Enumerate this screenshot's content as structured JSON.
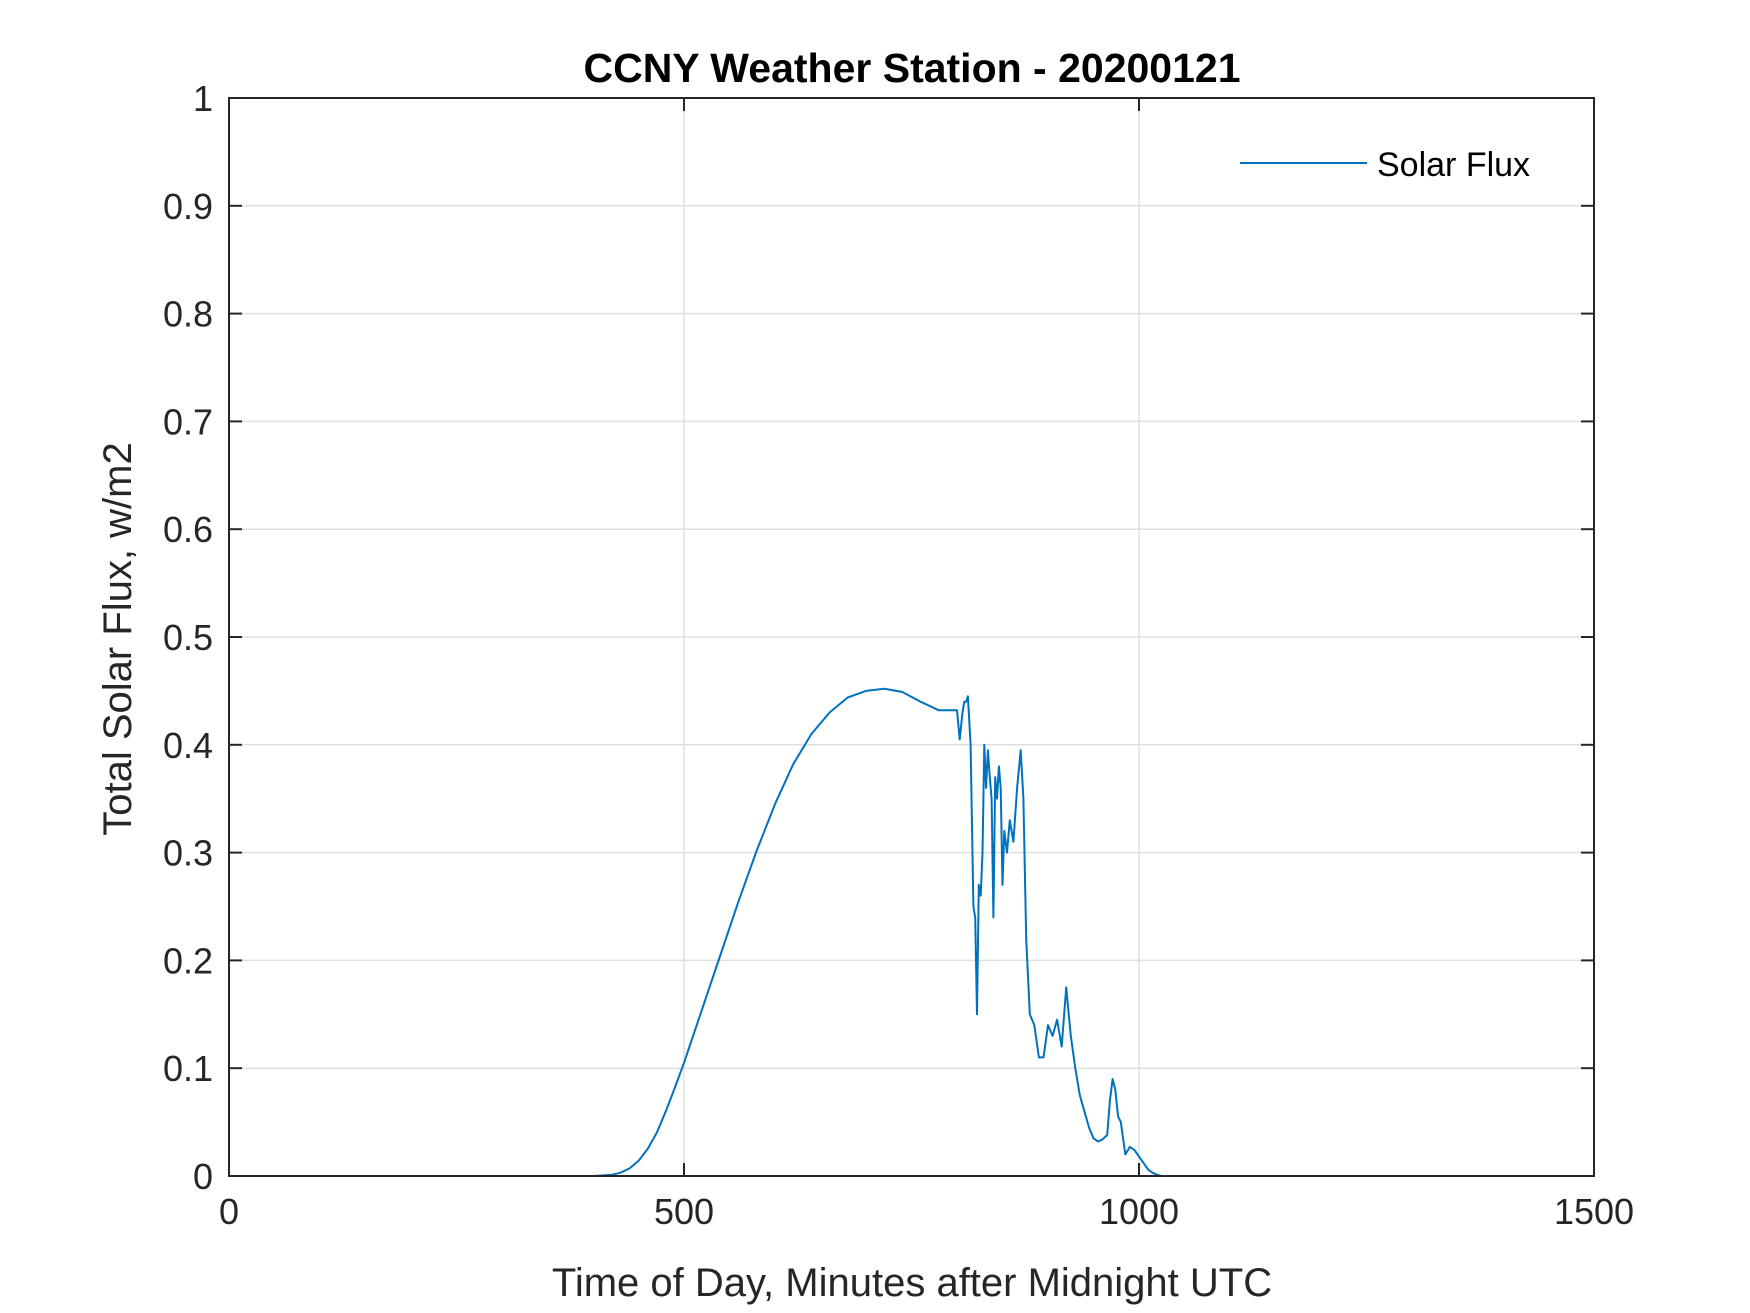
{
  "colors": {
    "series": "#0072bd",
    "axis": "#262626",
    "grid": "#dfdfdf",
    "background": "#ffffff"
  },
  "chart_data": {
    "type": "line",
    "title": "CCNY Weather Station - 20200121",
    "xlabel": "Time of Day, Minutes after Midnight UTC",
    "ylabel": "Total Solar Flux, w/m2",
    "xlim": [
      0,
      1500
    ],
    "ylim": [
      0,
      1
    ],
    "xticks": [
      0,
      500,
      1000,
      1500
    ],
    "xtick_labels": [
      "0",
      "500",
      "1000",
      "1500"
    ],
    "yticks": [
      0,
      0.1,
      0.2,
      0.3,
      0.4,
      0.5,
      0.6,
      0.7,
      0.8,
      0.9,
      1
    ],
    "ytick_labels": [
      "0",
      "0.1",
      "0.2",
      "0.3",
      "0.4",
      "0.5",
      "0.6",
      "0.7",
      "0.8",
      "0.9",
      "1"
    ],
    "grid": true,
    "legend_position": "top-right",
    "series": [
      {
        "name": "Solar Flux",
        "x": [
          0,
          200,
          400,
          420,
          430,
          440,
          450,
          460,
          470,
          480,
          490,
          500,
          520,
          540,
          560,
          580,
          600,
          620,
          640,
          660,
          680,
          700,
          720,
          740,
          760,
          780,
          800,
          803,
          806,
          808,
          810,
          812,
          815,
          818,
          820,
          822,
          824,
          826,
          828,
          830,
          832,
          834,
          836,
          838,
          840,
          842,
          844,
          846,
          848,
          850,
          852,
          855,
          858,
          862,
          866,
          870,
          873,
          876,
          880,
          885,
          890,
          895,
          900,
          905,
          910,
          915,
          920,
          925,
          930,
          935,
          940,
          945,
          950,
          955,
          960,
          965,
          968,
          971,
          974,
          977,
          980,
          985,
          990,
          995,
          1000,
          1005,
          1010,
          1015,
          1020,
          1025,
          1030,
          1040,
          1100,
          1200,
          1300,
          1440
        ],
        "values": [
          0,
          0,
          0,
          0.001,
          0.003,
          0.007,
          0.014,
          0.025,
          0.04,
          0.06,
          0.082,
          0.105,
          0.155,
          0.205,
          0.255,
          0.302,
          0.345,
          0.382,
          0.41,
          0.43,
          0.444,
          0.45,
          0.452,
          0.449,
          0.44,
          0.432,
          0.432,
          0.405,
          0.43,
          0.44,
          0.44,
          0.445,
          0.4,
          0.25,
          0.24,
          0.15,
          0.27,
          0.26,
          0.3,
          0.4,
          0.36,
          0.395,
          0.37,
          0.35,
          0.24,
          0.37,
          0.35,
          0.38,
          0.36,
          0.27,
          0.32,
          0.3,
          0.33,
          0.31,
          0.36,
          0.395,
          0.35,
          0.22,
          0.15,
          0.14,
          0.11,
          0.11,
          0.14,
          0.13,
          0.145,
          0.12,
          0.175,
          0.13,
          0.1,
          0.075,
          0.06,
          0.045,
          0.035,
          0.032,
          0.034,
          0.038,
          0.07,
          0.09,
          0.08,
          0.055,
          0.05,
          0.02,
          0.027,
          0.024,
          0.018,
          0.012,
          0.006,
          0.003,
          0.001,
          0,
          0,
          0,
          0,
          0,
          0,
          0
        ]
      }
    ]
  }
}
